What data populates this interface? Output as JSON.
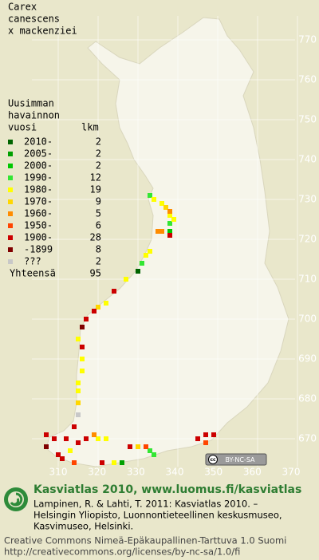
{
  "title": [
    "Carex",
    "canescens",
    "x mackenziei"
  ],
  "legend": {
    "heading": [
      "Uusimman",
      "havainnon",
      "vuosi"
    ],
    "count_heading": "lkm",
    "entries": [
      {
        "label": "2010-",
        "count": 2,
        "color": "#006400",
        "points": [
          {
            "x": 330,
            "y": 712
          }
        ]
      },
      {
        "label": "2005-",
        "count": 2,
        "color": "#00a000",
        "points": [
          {
            "x": 326,
            "y": 664
          }
        ]
      },
      {
        "label": "2000-",
        "count": 2,
        "color": "#00c800",
        "points": [
          {
            "x": 338,
            "y": 722
          }
        ]
      },
      {
        "label": "1990-",
        "count": 12,
        "color": "#33e633",
        "points": [
          {
            "x": 333,
            "y": 731
          },
          {
            "x": 338,
            "y": 724
          },
          {
            "x": 331,
            "y": 714
          },
          {
            "x": 333,
            "y": 667
          },
          {
            "x": 334,
            "y": 666
          }
        ]
      },
      {
        "label": "1980-",
        "count": 19,
        "color": "#ffff00",
        "points": [
          {
            "x": 334,
            "y": 730
          },
          {
            "x": 336,
            "y": 729
          },
          {
            "x": 338,
            "y": 726
          },
          {
            "x": 339,
            "y": 725
          },
          {
            "x": 333,
            "y": 717
          },
          {
            "x": 332,
            "y": 716
          },
          {
            "x": 327,
            "y": 710
          },
          {
            "x": 322,
            "y": 704
          },
          {
            "x": 315,
            "y": 695
          },
          {
            "x": 316,
            "y": 690
          },
          {
            "x": 316,
            "y": 687
          },
          {
            "x": 315,
            "y": 684
          },
          {
            "x": 315,
            "y": 682
          },
          {
            "x": 320,
            "y": 670
          },
          {
            "x": 322,
            "y": 670
          },
          {
            "x": 313,
            "y": 667
          },
          {
            "x": 324,
            "y": 664
          }
        ]
      },
      {
        "label": "1970-",
        "count": 9,
        "color": "#ffd700",
        "points": [
          {
            "x": 337,
            "y": 728
          },
          {
            "x": 320,
            "y": 703
          },
          {
            "x": 315,
            "y": 679
          },
          {
            "x": 330,
            "y": 668
          }
        ]
      },
      {
        "label": "1960-",
        "count": 5,
        "color": "#ff8c00",
        "points": [
          {
            "x": 338,
            "y": 727
          },
          {
            "x": 335,
            "y": 722
          },
          {
            "x": 336,
            "y": 722
          },
          {
            "x": 319,
            "y": 671
          }
        ]
      },
      {
        "label": "1950-",
        "count": 6,
        "color": "#ff4500",
        "points": [
          {
            "x": 314,
            "y": 664
          },
          {
            "x": 332,
            "y": 668
          },
          {
            "x": 347,
            "y": 669
          }
        ]
      },
      {
        "label": "1900-",
        "count": 28,
        "color": "#cc0000",
        "points": [
          {
            "x": 338,
            "y": 721
          },
          {
            "x": 324,
            "y": 707
          },
          {
            "x": 319,
            "y": 702
          },
          {
            "x": 317,
            "y": 700
          },
          {
            "x": 316,
            "y": 693
          },
          {
            "x": 314,
            "y": 673
          },
          {
            "x": 317,
            "y": 670
          },
          {
            "x": 315,
            "y": 669
          },
          {
            "x": 312,
            "y": 670
          },
          {
            "x": 309,
            "y": 670
          },
          {
            "x": 307,
            "y": 671
          },
          {
            "x": 310,
            "y": 666
          },
          {
            "x": 311,
            "y": 665
          },
          {
            "x": 321,
            "y": 664
          },
          {
            "x": 328,
            "y": 668
          },
          {
            "x": 345,
            "y": 670
          },
          {
            "x": 347,
            "y": 671
          },
          {
            "x": 349,
            "y": 671
          }
        ]
      },
      {
        "label": "-1899",
        "count": 8,
        "color": "#800000",
        "points": [
          {
            "x": 316,
            "y": 698
          },
          {
            "x": 307,
            "y": 668
          }
        ]
      },
      {
        "label": "???",
        "count": 2,
        "color": "#c8c8c8",
        "points": [
          {
            "x": 315,
            "y": 676
          }
        ]
      }
    ],
    "total_label": "Yhteensä",
    "total": 95
  },
  "grid": {
    "x_labels": [
      310,
      320,
      330,
      340,
      350,
      360,
      370
    ],
    "y_labels": [
      670,
      680,
      690,
      700,
      710,
      720,
      730,
      740,
      750,
      760,
      770
    ]
  },
  "badge": [
    "cc",
    "BY-NC-SA"
  ],
  "footer": {
    "heading": "Kasviatlas 2010, www.luomus.fi/kasviatlas",
    "citation": [
      "Lampinen, R. & Lahti, T. 2011: Kasviatlas 2010. –",
      "Helsingin Yliopisto, Luonnontieteellinen keskusmuseo,",
      "Kasvimuseo, Helsinki."
    ],
    "license": [
      "Creative Commons Nimeä-Epäkaupallinen-Tarttuva 1.0 Suomi",
      "http://creativecommons.org/licenses/by-nc-sa/1.0/fi"
    ]
  }
}
